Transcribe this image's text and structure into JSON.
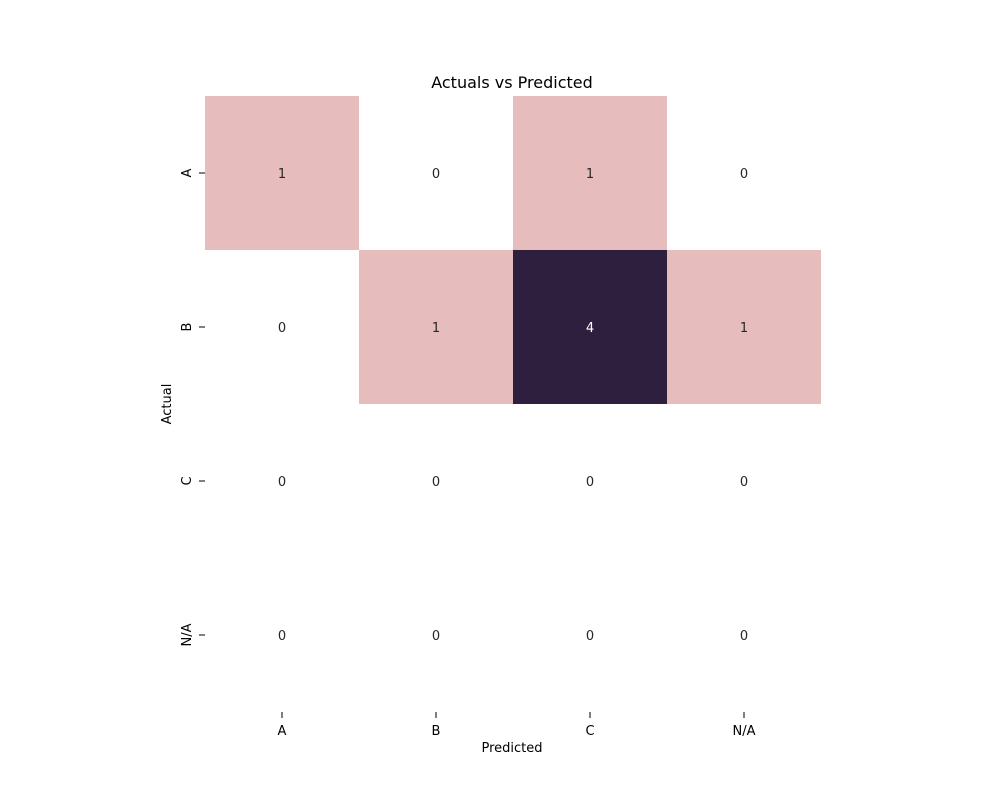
{
  "chart_data": {
    "type": "heatmap",
    "title": "Actuals vs Predicted",
    "xlabel": "Predicted",
    "ylabel": "Actual",
    "x_categories": [
      "A",
      "B",
      "C",
      "N/A"
    ],
    "y_categories": [
      "A",
      "B",
      "C",
      "N/A"
    ],
    "values": [
      [
        1,
        0,
        1,
        0
      ],
      [
        0,
        1,
        4,
        1
      ],
      [
        0,
        0,
        0,
        0
      ],
      [
        0,
        0,
        0,
        0
      ]
    ],
    "colors": {
      "zero": "#ffffff",
      "low": "#e6bcbc",
      "high": "#2e1f3e",
      "text_dark": "#262626",
      "text_light": "#ffffff"
    }
  }
}
